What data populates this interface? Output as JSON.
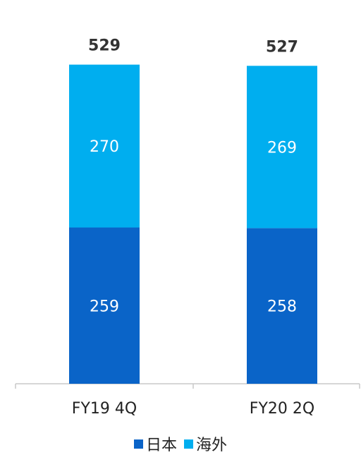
{
  "chart_data": {
    "type": "bar",
    "stacked": true,
    "categories": [
      "FY19 4Q",
      "FY20 2Q"
    ],
    "series": [
      {
        "name": "日本",
        "values": [
          259,
          258
        ],
        "color": "#0A64C8"
      },
      {
        "name": "海外",
        "values": [
          270,
          269
        ],
        "color": "#00AEEF"
      }
    ],
    "totals": [
      "529",
      "527"
    ],
    "ylim": [
      0,
      580
    ],
    "grid": false,
    "legend": "bottom",
    "label_color": "#ffffff",
    "total_color": "#333333",
    "axis_color": "#c8c8c8"
  }
}
